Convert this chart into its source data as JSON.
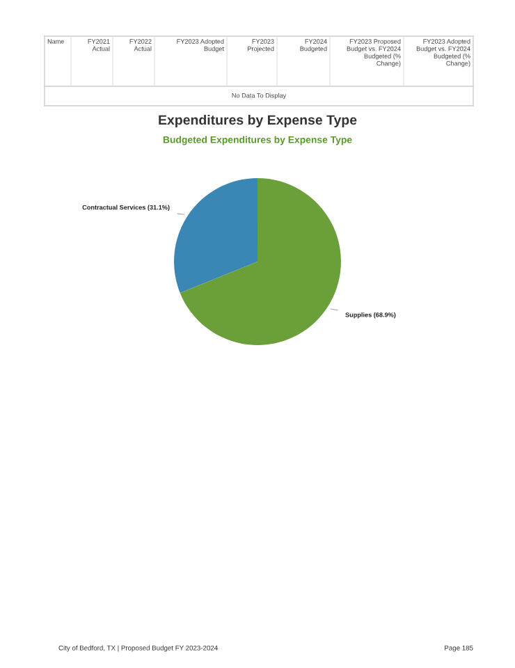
{
  "chart_data": {
    "type": "pie",
    "title": "Expenditures by Expense Type",
    "subtitle": "Budgeted Expenditures by Expense Type",
    "categories": [
      "Contractual Services",
      "Supplies"
    ],
    "values": [
      31.1,
      68.9
    ],
    "colors": [
      "#3a87b5",
      "#6a9f3a"
    ],
    "value_labels": [
      "(31.1%)",
      "(68.9%)"
    ],
    "legend": false,
    "annotations": [
      "Name",
      "FY2021\nActual",
      "FY2022\nActual",
      "FY2023 Adopted\nBudget",
      "FY2023\nProjected",
      "FY2024\nBudgeted",
      "FY2023 Proposed\nBudget vs. FY2024\nBudgeted (%\nChange)",
      "FY2023 Adopted\nBudget vs. FY2024\nBudgeted (%\nChange)",
      "No Data To Display",
      "City of Bedford, TX | Proposed Budget FY 2023-2024",
      "Page 185"
    ]
  }
}
